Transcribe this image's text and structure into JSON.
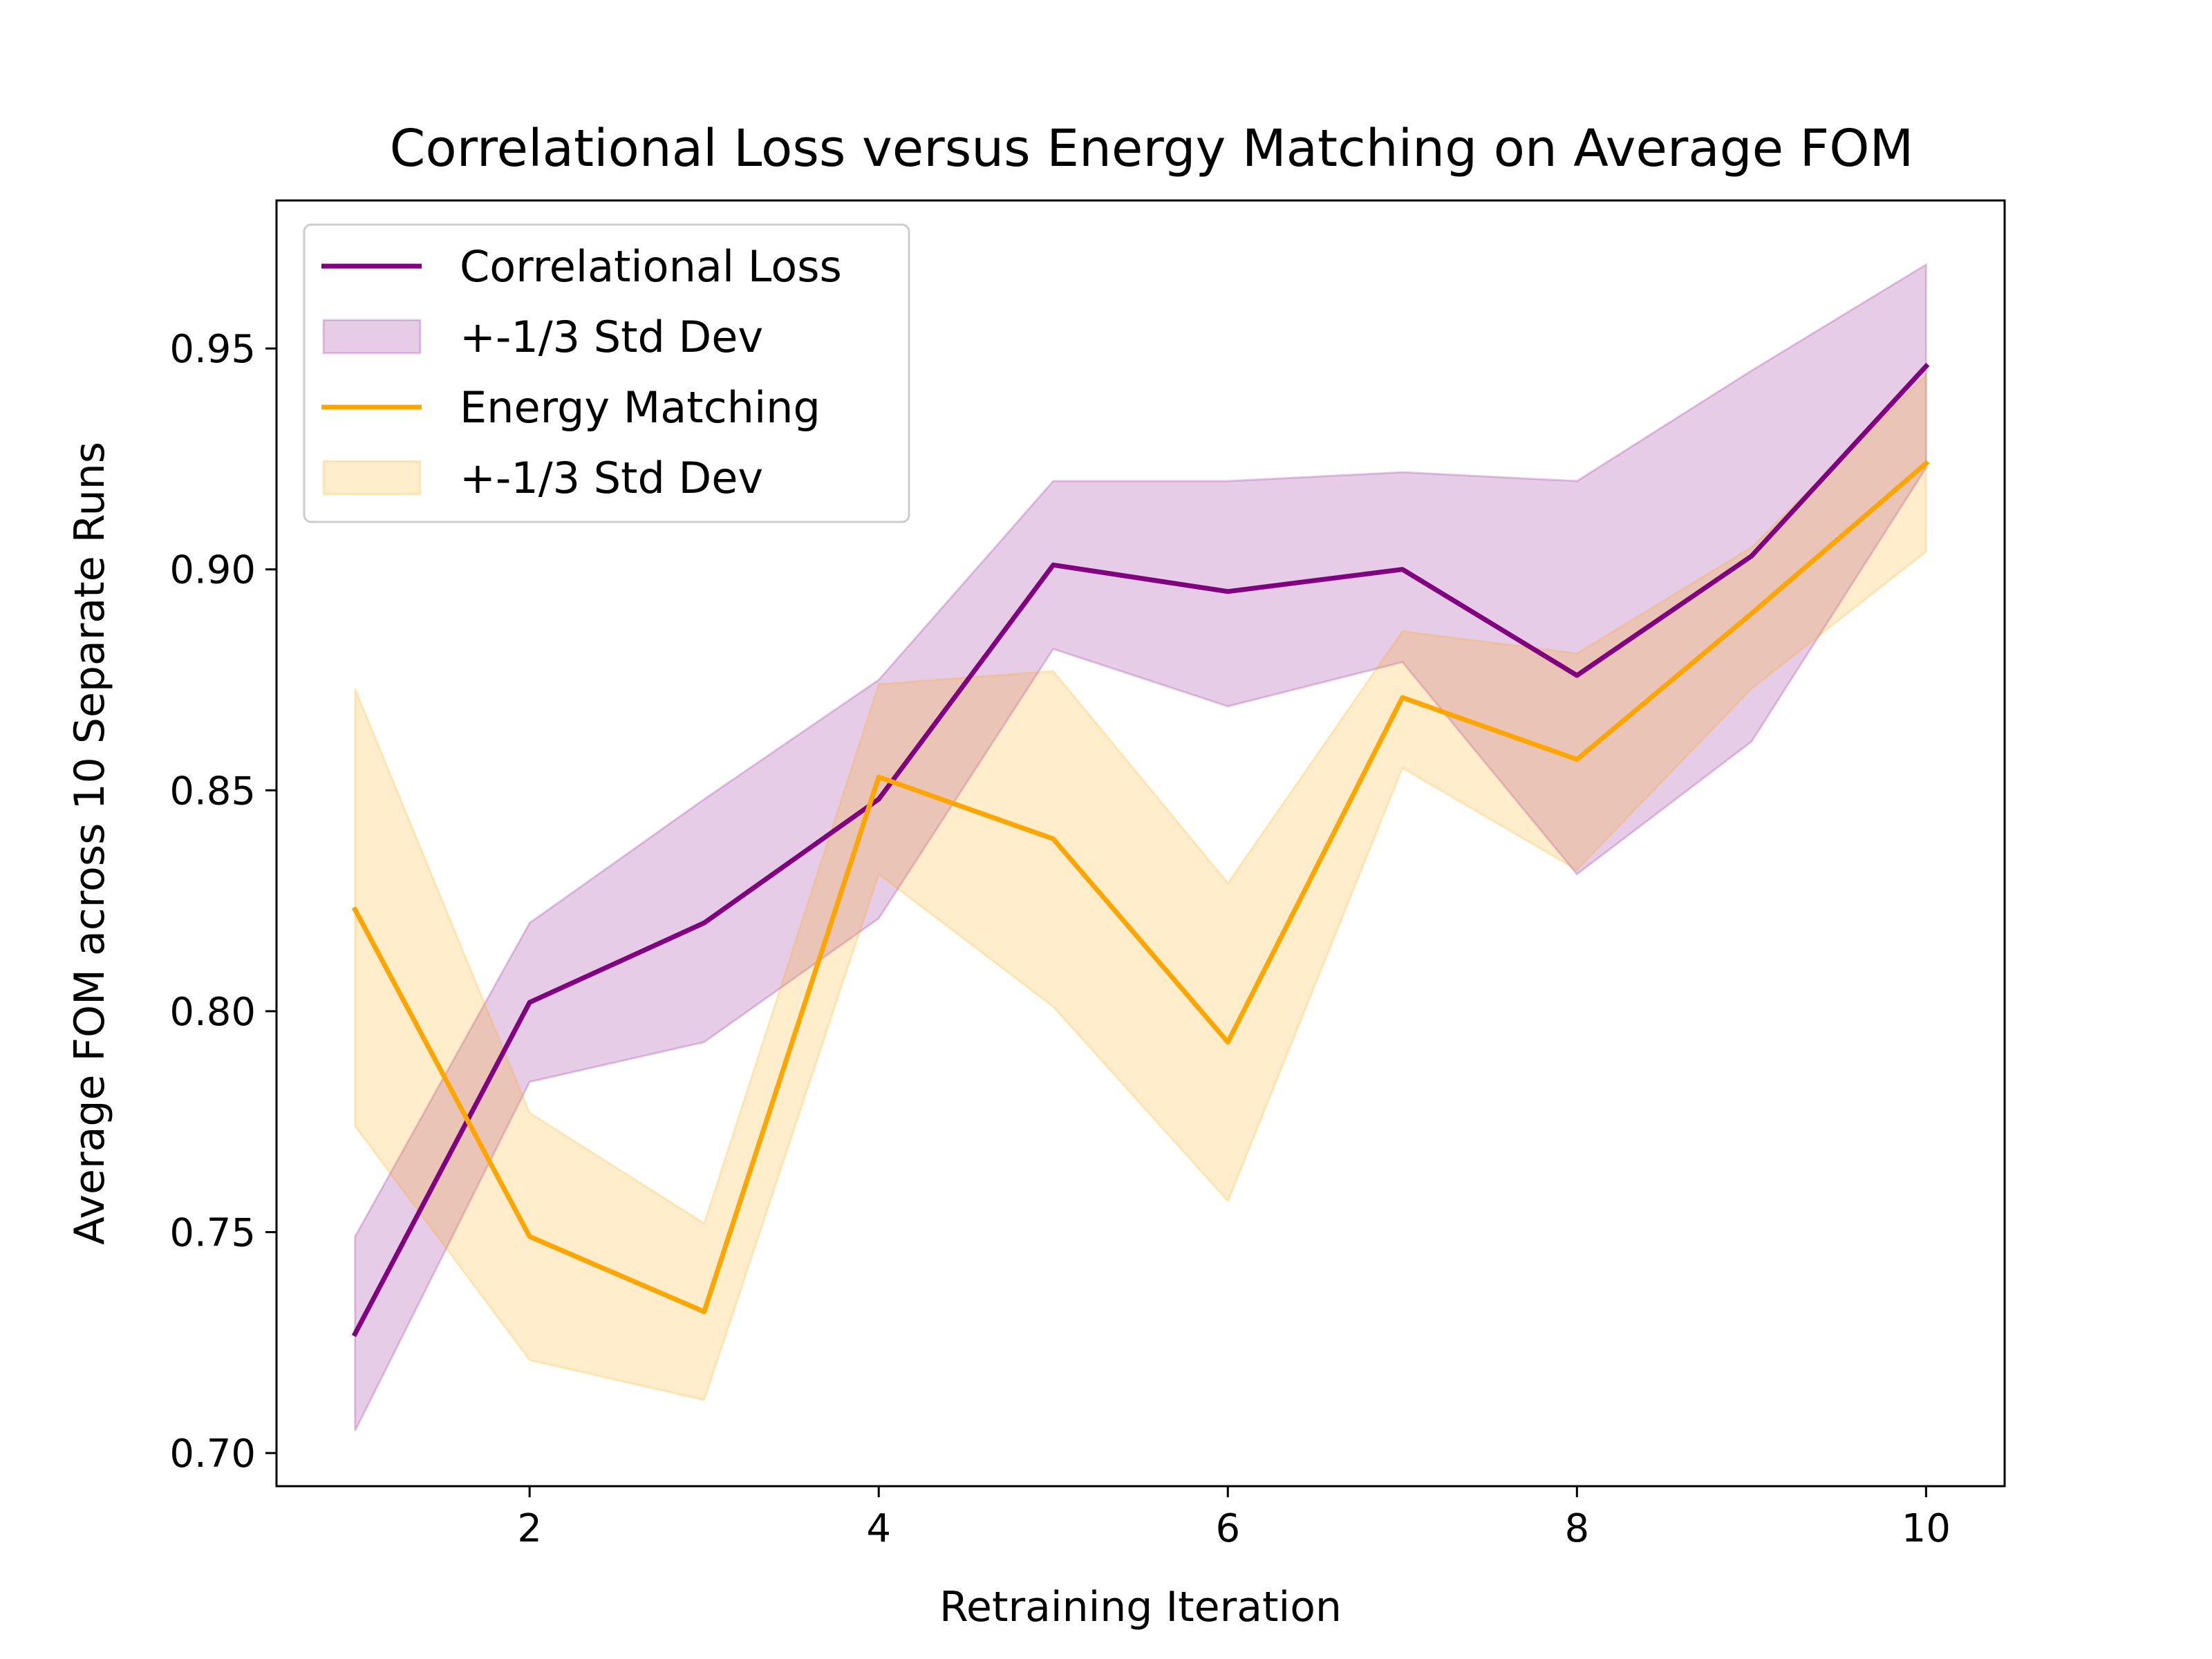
{
  "chart_data": {
    "type": "line",
    "title": "Correlational Loss versus Energy Matching on Average FOM",
    "xlabel": "Retraining Iteration",
    "ylabel": "Average FOM across 10 Separate Runs",
    "xlim": [
      0.55,
      10.45
    ],
    "ylim": [
      0.6925,
      0.9835
    ],
    "xticks": [
      2,
      4,
      6,
      8,
      10
    ],
    "xtick_labels": [
      "2",
      "4",
      "6",
      "8",
      "10"
    ],
    "yticks": [
      0.7,
      0.75,
      0.8,
      0.85,
      0.9,
      0.95
    ],
    "ytick_labels": [
      "0.70",
      "0.75",
      "0.80",
      "0.85",
      "0.90",
      "0.95"
    ],
    "legend_position": "upper-left",
    "legend": [
      {
        "label": "Correlational Loss",
        "kind": "line",
        "series": 0
      },
      {
        "label": "+-1/3 Std Dev",
        "kind": "band",
        "series": 0
      },
      {
        "label": "Energy Matching",
        "kind": "line",
        "series": 1
      },
      {
        "label": "+-1/3 Std Dev",
        "kind": "band",
        "series": 1
      }
    ],
    "x": [
      1,
      2,
      3,
      4,
      5,
      6,
      7,
      8,
      9,
      10
    ],
    "series": [
      {
        "name": "Correlational Loss",
        "color": "#800080",
        "band_color": "#800080",
        "values": [
          0.727,
          0.802,
          0.82,
          0.848,
          0.901,
          0.895,
          0.9,
          0.876,
          0.903,
          0.946
        ],
        "upper": [
          0.749,
          0.82,
          0.848,
          0.875,
          0.92,
          0.92,
          0.922,
          0.92,
          0.945,
          0.969
        ],
        "lower": [
          0.705,
          0.784,
          0.793,
          0.821,
          0.882,
          0.869,
          0.879,
          0.831,
          0.861,
          0.923
        ]
      },
      {
        "name": "Energy Matching",
        "color": "#FFA500",
        "band_color": "#FFA500",
        "values": [
          0.823,
          0.749,
          0.732,
          0.853,
          0.839,
          0.793,
          0.871,
          0.857,
          0.89,
          0.924
        ],
        "upper": [
          0.873,
          0.777,
          0.752,
          0.874,
          0.877,
          0.829,
          0.886,
          0.881,
          0.905,
          0.944
        ],
        "lower": [
          0.774,
          0.721,
          0.712,
          0.831,
          0.801,
          0.757,
          0.855,
          0.832,
          0.873,
          0.904
        ]
      }
    ]
  }
}
